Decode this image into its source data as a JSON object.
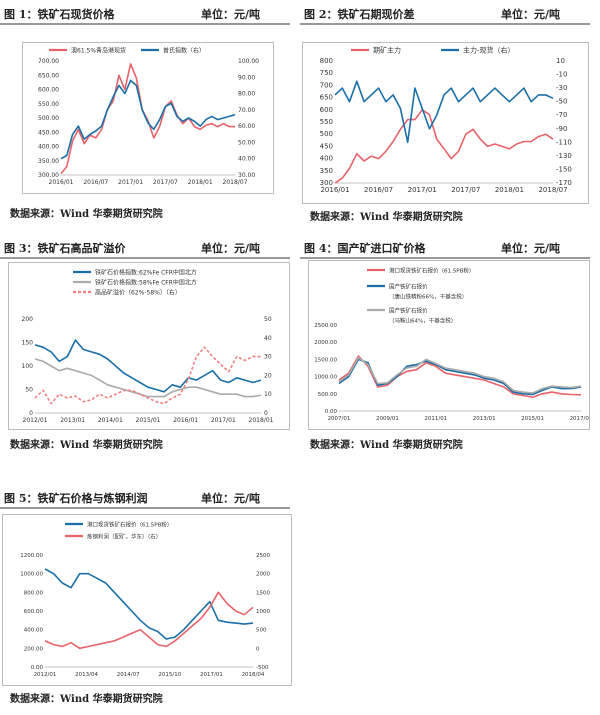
{
  "panels": [
    {
      "title": "图 1：铁矿石现货价格",
      "unit": "单位：元/吨",
      "source": "数据来源：Wind 华泰期货研究院"
    },
    {
      "title": "图 2：铁矿石期现价差",
      "unit": "单位：元/吨",
      "source": "数据来源：Wind 华泰期货研究院"
    },
    {
      "title": "图 3：铁矿石高品矿溢价",
      "unit": "单位：元/吨",
      "source": "数据来源：Wind 华泰期货研究院"
    },
    {
      "title": "图 4：国产矿进口矿价格",
      "unit": "单位：元/吨",
      "source": "数据来源：Wind 华泰期货研究院"
    },
    {
      "title": "图 5：铁矿石价格与炼钢利润",
      "unit": "单位：元/吨",
      "source": "数据来源：Wind 华泰期货研究院"
    }
  ],
  "chart_data": [
    {
      "type": "line",
      "legend": [
        "澳61.5%青岛港现货",
        "普氏指数（右）"
      ],
      "colors": [
        "#e8626a",
        "#1a6fa8"
      ],
      "x_ticks": [
        "2016/01",
        "2016/07",
        "2017/01",
        "2017/07",
        "2018/01",
        "2018/07"
      ],
      "y_ticks": [
        "300.00",
        "350.00",
        "400.00",
        "450.00",
        "500.00",
        "550.00",
        "600.00",
        "650.00",
        "700.00"
      ],
      "y2_ticks": [
        "30.00",
        "40.00",
        "50.00",
        "60.00",
        "70.00",
        "80.00",
        "90.00",
        "100.00"
      ],
      "ylim": [
        300,
        700
      ],
      "y2lim": [
        30,
        100
      ],
      "series": [
        {
          "name": "澳61.5%青岛港现货",
          "axis": "left",
          "values": [
            305,
            330,
            420,
            460,
            410,
            440,
            430,
            460,
            530,
            560,
            650,
            600,
            690,
            640,
            530,
            490,
            430,
            470,
            540,
            560,
            510,
            480,
            500,
            470,
            460,
            475,
            480,
            470,
            480,
            470,
            470
          ]
        },
        {
          "name": "普氏指数（右）",
          "axis": "right",
          "values": [
            40,
            42,
            55,
            60,
            52,
            55,
            57,
            60,
            70,
            78,
            85,
            80,
            88,
            85,
            70,
            62,
            58,
            64,
            72,
            74,
            66,
            63,
            65,
            63,
            60,
            64,
            66,
            64,
            65,
            66,
            67
          ]
        }
      ]
    },
    {
      "type": "line",
      "legend": [
        "期矿主力",
        "主力-现货（右）"
      ],
      "colors": [
        "#e8626a",
        "#1a6fa8"
      ],
      "x_ticks": [
        "2016/01",
        "2016/07",
        "2017/01",
        "2017/07",
        "2018/01",
        "2018/07"
      ],
      "y_ticks": [
        "300",
        "350",
        "400",
        "450",
        "500",
        "550",
        "600",
        "650",
        "700",
        "750",
        "800"
      ],
      "y2_ticks": [
        "-170",
        "-150",
        "-130",
        "-110",
        "-90",
        "-70",
        "-50",
        "-30",
        "-10",
        "10"
      ],
      "ylim": [
        300,
        800
      ],
      "y2lim": [
        -170,
        10
      ],
      "series": [
        {
          "name": "期矿主力",
          "axis": "left",
          "values": [
            300,
            320,
            360,
            420,
            390,
            410,
            400,
            430,
            470,
            520,
            560,
            560,
            600,
            580,
            480,
            440,
            400,
            430,
            500,
            520,
            480,
            450,
            460,
            450,
            440,
            460,
            470,
            470,
            490,
            500,
            480
          ]
        },
        {
          "name": "主力-现货（右）",
          "axis": "right",
          "values": [
            -40,
            -30,
            -50,
            -20,
            -50,
            -40,
            -30,
            -50,
            -40,
            -60,
            -110,
            -30,
            -60,
            -90,
            -70,
            -40,
            -30,
            -50,
            -40,
            -30,
            -50,
            -40,
            -30,
            -40,
            -50,
            -40,
            -30,
            -50,
            -40,
            -40,
            -45
          ]
        }
      ]
    },
    {
      "type": "line",
      "legend": [
        "铁矿石价格指数:62%Fe CFR中国北方",
        "铁矿石价格指数:58%Fe CFR中国北方",
        "高品矿溢价（62%-58%）（右）"
      ],
      "colors": [
        "#1a6fa8",
        "#aaaaaa",
        "#f08080"
      ],
      "x_ticks": [
        "2012/01",
        "2013/01",
        "2014/01",
        "2015/01",
        "2016/01",
        "2017/01",
        "2018/01"
      ],
      "y_ticks": [
        "0",
        "50",
        "100",
        "150",
        "200"
      ],
      "y2_ticks": [
        "0",
        "10",
        "20",
        "30",
        "40",
        "50"
      ],
      "ylim": [
        0,
        200
      ],
      "y2lim": [
        0,
        50
      ],
      "series": [
        {
          "name": "铁矿石价格指数:62%Fe CFR中国北方",
          "axis": "left",
          "values": [
            145,
            140,
            130,
            110,
            120,
            155,
            135,
            130,
            125,
            115,
            100,
            85,
            75,
            65,
            55,
            50,
            45,
            60,
            55,
            75,
            70,
            80,
            90,
            70,
            65,
            75,
            70,
            65,
            70
          ]
        },
        {
          "name": "铁矿石价格指数:58%Fe CFR中国北方",
          "axis": "left",
          "values": [
            115,
            110,
            100,
            90,
            95,
            90,
            85,
            80,
            70,
            60,
            55,
            50,
            45,
            40,
            35,
            35,
            35,
            45,
            50,
            55,
            55,
            50,
            45,
            40,
            40,
            40,
            35,
            35,
            38
          ]
        },
        {
          "name": "高品矿溢价（62%-58%）（右）",
          "axis": "right",
          "values": [
            8,
            12,
            5,
            10,
            8,
            9,
            6,
            7,
            10,
            8,
            10,
            12,
            12,
            10,
            8,
            6,
            5,
            8,
            10,
            18,
            30,
            35,
            30,
            26,
            22,
            30,
            28,
            30,
            30
          ]
        }
      ]
    },
    {
      "type": "line",
      "legend": [
        "港口现货铁矿石报价（61.5PB粉）",
        "国产铁矿石报价",
        "（唐山铁精粉66%，干基含税）",
        "国产铁矿石报价",
        "（马鞍山64%，干基含税）"
      ],
      "colors": [
        "#e8626a",
        "#1a6fa8",
        "#aaaaaa"
      ],
      "x_ticks": [
        "2007/01",
        "2009/01",
        "2011/01",
        "2013/01",
        "2015/01",
        "2017/01"
      ],
      "y_ticks": [
        "0.00",
        "500.00",
        "1000.00",
        "1500.00",
        "2000.00",
        "2500.00"
      ],
      "ylim": [
        0,
        2500
      ],
      "series": [
        {
          "name": "港口现货铁矿石报价（61.5PB粉）",
          "axis": "left",
          "values": [
            900,
            1100,
            1600,
            1300,
            700,
            750,
            1000,
            1150,
            1200,
            1400,
            1300,
            1100,
            1050,
            1000,
            950,
            900,
            800,
            700,
            500,
            450,
            400,
            500,
            550,
            500,
            480,
            470
          ]
        },
        {
          "name": "国产铁矿石报价（唐山铁精粉66%，干基含税）",
          "axis": "left",
          "values": [
            800,
            1000,
            1500,
            1400,
            750,
            800,
            1000,
            1300,
            1350,
            1450,
            1350,
            1200,
            1150,
            1100,
            1050,
            950,
            900,
            800,
            550,
            500,
            480,
            600,
            700,
            650,
            650,
            700
          ]
        },
        {
          "name": "国产铁矿石报价（马鞍山64%，干基含税）",
          "axis": "left",
          "values": [
            850,
            1050,
            1550,
            1350,
            800,
            820,
            1050,
            1250,
            1300,
            1500,
            1380,
            1250,
            1200,
            1150,
            1100,
            1000,
            950,
            850,
            600,
            550,
            520,
            650,
            720,
            700,
            680,
            720
          ]
        }
      ]
    },
    {
      "type": "line",
      "legend": [
        "港口现货铁矿石报价（61.5PB粉）",
        "炼钢利润（配矿，华东）（右）"
      ],
      "colors": [
        "#1a6fa8",
        "#e8626a"
      ],
      "x_ticks": [
        "2012/01",
        "2013/04",
        "2014/07",
        "2015/10",
        "2017/01",
        "2018/04"
      ],
      "y_ticks": [
        "0.00",
        "200.00",
        "400.00",
        "600.00",
        "800.00",
        "1000.00",
        "1200.00"
      ],
      "y2_ticks": [
        "-500",
        "0",
        "500",
        "1000",
        "1500",
        "2000",
        "2500"
      ],
      "ylim": [
        0,
        1200
      ],
      "y2lim": [
        -500,
        2500
      ],
      "series": [
        {
          "name": "港口现货铁矿石报价（61.5PB粉）",
          "axis": "left",
          "values": [
            1050,
            1000,
            900,
            850,
            1000,
            1000,
            950,
            900,
            800,
            700,
            600,
            500,
            420,
            380,
            300,
            320,
            400,
            500,
            600,
            700,
            500,
            480,
            470,
            460,
            470
          ]
        },
        {
          "name": "炼钢利润（配矿，华东）（右）",
          "axis": "right",
          "values": [
            200,
            100,
            50,
            150,
            0,
            50,
            100,
            150,
            200,
            300,
            400,
            500,
            300,
            100,
            50,
            200,
            400,
            600,
            800,
            1100,
            1500,
            1200,
            1000,
            900,
            1100
          ]
        }
      ]
    }
  ]
}
